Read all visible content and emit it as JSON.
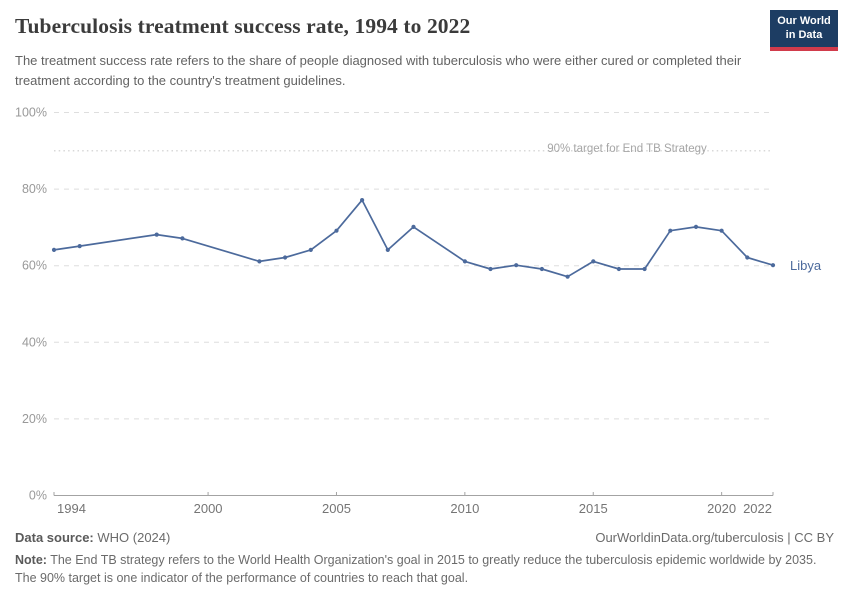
{
  "header": {
    "title": "Tuberculosis treatment success rate, 1994 to 2022",
    "subtitle": "The treatment success rate refers to the share of people diagnosed with tuberculosis who were either cured or completed their treatment according to the country's treatment guidelines.",
    "logo": {
      "line1": "Our World",
      "line2": "in Data",
      "bg_color": "#1d3d63",
      "accent_color": "#d13b4b"
    }
  },
  "chart_data": {
    "type": "line",
    "title": "Tuberculosis treatment success rate, 1994 to 2022",
    "x": [
      1994,
      1995,
      1996,
      1997,
      1998,
      1999,
      2000,
      2001,
      2002,
      2003,
      2004,
      2005,
      2006,
      2007,
      2008,
      2009,
      2010,
      2011,
      2012,
      2013,
      2014,
      2015,
      2016,
      2017,
      2018,
      2019,
      2020,
      2021,
      2022
    ],
    "series": [
      {
        "name": "Libya",
        "color": "#4c6a9c",
        "values": [
          64,
          65,
          null,
          null,
          68,
          67,
          null,
          null,
          61,
          62,
          64,
          69,
          77,
          64,
          70,
          null,
          61,
          59,
          60,
          59,
          57,
          61,
          59,
          59,
          69,
          70,
          69,
          62,
          60
        ]
      }
    ],
    "xlim": [
      1994,
      2022
    ],
    "ylim": [
      0,
      100
    ],
    "yticks": [
      0,
      20,
      40,
      60,
      80,
      100
    ],
    "ytick_labels": [
      "0%",
      "20%",
      "40%",
      "60%",
      "80%",
      "100%"
    ],
    "xticks": [
      1994,
      2000,
      2005,
      2010,
      2015,
      2020,
      2022
    ],
    "xtick_labels": [
      "1994",
      "2000",
      "2005",
      "2010",
      "2015",
      "2020",
      "2022"
    ],
    "target_line": {
      "value": 90,
      "label": "90% target for End TB Strategy"
    },
    "grid": "horizontal-dashed",
    "legend_position": "end-of-line"
  },
  "footer": {
    "source_label": "Data source:",
    "source_value": "WHO (2024)",
    "attribution": "OurWorldinData.org/tuberculosis | CC BY",
    "note_label": "Note:",
    "note_text": "The End TB strategy refers to the World Health Organization's goal in 2015 to greatly reduce the tuberculosis epidemic worldwide by 2035. The 90% target is one indicator of the performance of countries to reach that goal."
  },
  "colors": {
    "series_line": "#4c6a9c",
    "gridline": "#dedede",
    "target_line": "#cbcbcb",
    "axis": "#a3a3a3",
    "y_tick_text": "#999999",
    "x_tick_text": "#757575"
  }
}
